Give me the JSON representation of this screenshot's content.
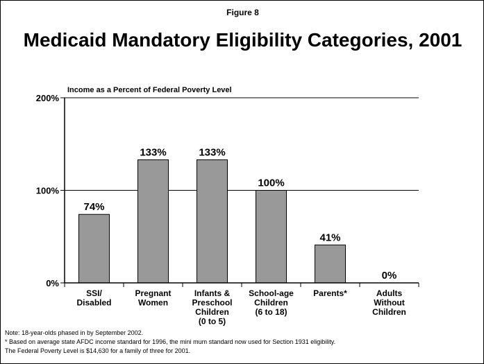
{
  "figure_label": "Figure 8",
  "chart_data": {
    "type": "bar",
    "title": "Medicaid Mandatory Eligibility Categories, 2001",
    "ylabel": "Income as a Percent of Federal Poverty Level",
    "xlabel": "",
    "ylim": [
      0,
      200
    ],
    "yticks": [
      "0%",
      "100%",
      "200%"
    ],
    "ytick_values": [
      0,
      100,
      200
    ],
    "gridlines": [
      100,
      200
    ],
    "categories": [
      [
        "SSI/",
        "Disabled"
      ],
      [
        "Pregnant",
        "Women"
      ],
      [
        "Infants &",
        "Preschool",
        "Children",
        "(0 to 5)"
      ],
      [
        "School-age",
        "Children",
        "(6 to 18)"
      ],
      [
        "Parents*"
      ],
      [
        "Adults",
        "Without",
        "Children"
      ]
    ],
    "values": [
      74,
      133,
      133,
      100,
      41,
      0
    ],
    "data_labels": [
      "74%",
      "133%",
      "133%",
      "100%",
      "41%",
      "0%"
    ],
    "bar_color": "#999999"
  },
  "notes": [
    "Note: 18-year-olds phased in by September 2002.",
    "* Based on average state AFDC income standard for 1996, the mini mum standard now used for Section 1931 eligibility.",
    "The Federal Poverty Level is $14,630 for a family of three for 2001."
  ]
}
